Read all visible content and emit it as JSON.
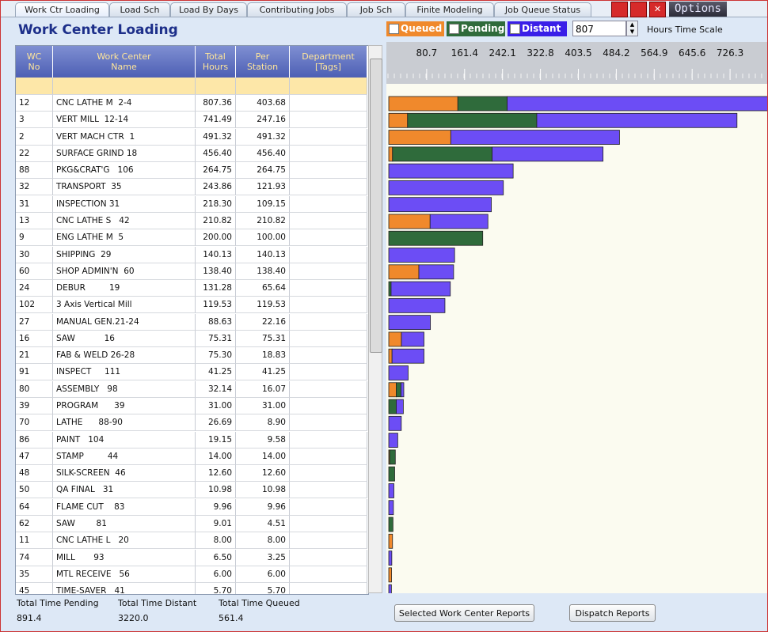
{
  "tabs": [
    "Work Ctr Loading",
    "Load Sch",
    "Load By Days",
    "Contributing Jobs",
    "Job Sch",
    "Finite Modeling",
    "Job Queue Status"
  ],
  "options_button": "Options",
  "title": "Work Center Loading",
  "time_scale_label": "Hours Time Scale",
  "table": {
    "header": [
      "WC\nNo",
      "Work Center\nName",
      "Total\nHours",
      "Per\nStation",
      "Department\n[Tags]"
    ],
    "rows": [
      [
        "12",
        "CNC LATHE M  2-4",
        "807.36",
        "403.68"
      ],
      [
        "3",
        "VERT MILL  12-14",
        "741.49",
        "247.16"
      ],
      [
        "2",
        "VERT MACH CTR  1",
        "491.32",
        "491.32"
      ],
      [
        "22",
        "SURFACE GRIND 18",
        "456.40",
        "456.40"
      ],
      [
        "88",
        "PKG&CRAT'G   106",
        "264.75",
        "264.75"
      ],
      [
        "32",
        "TRANSPORT  35",
        "243.86",
        "121.93"
      ],
      [
        "31",
        "INSPECTION 31",
        "218.30",
        "109.15"
      ],
      [
        "13",
        "CNC LATHE S   42",
        "210.82",
        "210.82"
      ],
      [
        "9",
        "ENG LATHE M  5",
        "200.00",
        "100.00"
      ],
      [
        "30",
        "SHIPPING  29",
        "140.13",
        "140.13"
      ],
      [
        "60",
        "SHOP ADMIN'N  60",
        "138.40",
        "138.40"
      ],
      [
        "24",
        "DEBUR         19",
        "131.28",
        "65.64"
      ],
      [
        "102",
        "3 Axis Vertical Mill",
        "119.53",
        "119.53"
      ],
      [
        "27",
        "MANUAL GEN.21-24",
        "88.63",
        "22.16"
      ],
      [
        "16",
        "SAW           16",
        "75.31",
        "75.31"
      ],
      [
        "21",
        "FAB & WELD 26-28",
        "75.30",
        "18.83"
      ],
      [
        "91",
        "INSPECT     111",
        "41.25",
        "41.25"
      ],
      [
        "80",
        "ASSEMBLY   98",
        "32.14",
        "16.07"
      ],
      [
        "39",
        "PROGRAM      39",
        "31.00",
        "31.00"
      ],
      [
        "70",
        "LATHE      88-90",
        "26.69",
        "8.90"
      ],
      [
        "86",
        "PAINT   104",
        "19.15",
        "9.58"
      ],
      [
        "47",
        "STAMP         44",
        "14.00",
        "14.00"
      ],
      [
        "48",
        "SILK-SCREEN  46",
        "12.60",
        "12.60"
      ],
      [
        "50",
        "QA FINAL   31",
        "10.98",
        "10.98"
      ],
      [
        "64",
        "FLAME CUT    83",
        "9.96",
        "9.96"
      ],
      [
        "62",
        "SAW        81",
        "9.01",
        "4.51"
      ],
      [
        "11",
        "CNC LATHE L   20",
        "8.00",
        "8.00"
      ],
      [
        "74",
        "MILL       93",
        "6.50",
        "3.25"
      ],
      [
        "35",
        "MTL RECEIVE   56",
        "6.00",
        "6.00"
      ],
      [
        "45",
        "TIME-SAVER   41",
        "5.70",
        "5.70"
      ]
    ]
  },
  "chart": {
    "type": "bar",
    "orientation": "horizontal",
    "stacked": true,
    "xlim": [
      0,
      807
    ],
    "xticks": [
      80.7,
      161.4,
      242.1,
      322.8,
      403.5,
      484.2,
      564.9,
      645.6,
      726.3
    ],
    "series": [
      {
        "name": "Queued",
        "color": "#f0892c",
        "values": [
          147,
          40,
          132,
          8,
          0,
          0,
          0,
          88,
          0,
          0,
          64,
          0,
          0,
          0,
          27,
          7,
          0,
          16,
          0,
          0,
          0,
          2,
          0,
          0,
          0,
          0,
          8,
          0,
          6,
          0
        ]
      },
      {
        "name": "Pending",
        "color": "#2f6b3b",
        "values": [
          105,
          275,
          0,
          212,
          0,
          0,
          0,
          0,
          200,
          0,
          0,
          5,
          0,
          0,
          0,
          0,
          0,
          10,
          16,
          0,
          0,
          12,
          12.6,
          0,
          0,
          9,
          0,
          0,
          0,
          0
        ]
      },
      {
        "name": "Distant",
        "color": "#6c4df5",
        "values": [
          555,
          426,
          359,
          236,
          264.75,
          243.86,
          218.3,
          123,
          0,
          140.13,
          74,
          126,
          119.53,
          88.63,
          48,
          68,
          41.25,
          6,
          15,
          26.69,
          19.15,
          0,
          0,
          10.98,
          9.96,
          0,
          0,
          6.5,
          0,
          5.7
        ]
      }
    ]
  },
  "totals": [
    {
      "label": "Total Time Pending",
      "value": "891.4"
    },
    {
      "label": "Total Time Distant",
      "value": "3220.0"
    },
    {
      "label": "Total Time Queued",
      "value": "561.4"
    }
  ],
  "buttons": [
    "Selected Work Center Reports",
    "Dispatch Reports"
  ]
}
